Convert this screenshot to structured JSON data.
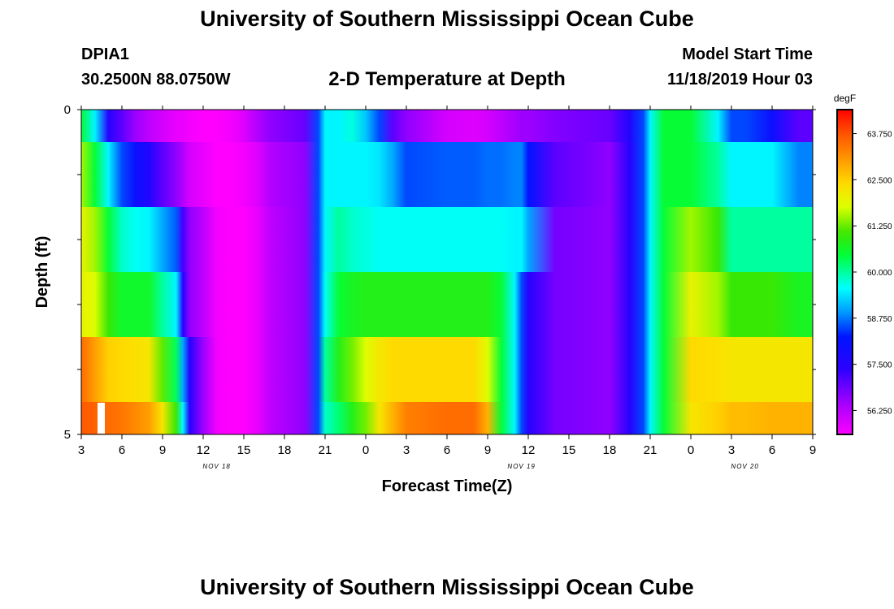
{
  "header": {
    "title_top": "University of Southern Mississippi Ocean Cube",
    "station_id": "DPIA1",
    "station_coords": "30.2500N 88.0750W",
    "chart_title": "2-D Temperature at Depth",
    "model_label": "Model Start Time",
    "model_time": "11/18/2019 Hour 03",
    "title_bottom": "University of Southern Mississippi Ocean Cube"
  },
  "chart_data": {
    "type": "heatmap",
    "title": "2-D Temperature at Depth",
    "xlabel": "Forecast Time(Z)",
    "ylabel": "Depth (ft)",
    "x_start_hour": 3,
    "x_end_hour": 57,
    "x_tick_labels": [
      "3",
      "6",
      "9",
      "12",
      "15",
      "18",
      "21",
      "0",
      "3",
      "6",
      "9",
      "12",
      "15",
      "18",
      "21",
      "0",
      "3",
      "6",
      "9"
    ],
    "date_labels": [
      {
        "label": "NOV 18",
        "hour": 13
      },
      {
        "label": "NOV 19",
        "hour": 35.5
      },
      {
        "label": "NOV 20",
        "hour": 52
      }
    ],
    "y_tick_labels": [
      "0",
      "5"
    ],
    "depth_range_ft": [
      0,
      5
    ],
    "colorbar": {
      "unit": "degF",
      "range": [
        55.6,
        64.4
      ],
      "tick_values": [
        63.75,
        62.5,
        61.25,
        60.0,
        58.75,
        57.5,
        56.25
      ],
      "tick_labels": [
        "63.750",
        "62.500",
        "61.250",
        "60.000",
        "58.750",
        "57.500",
        "56.250"
      ]
    },
    "depth_layers_ft": [
      {
        "top": 0.0,
        "bottom": 0.5
      },
      {
        "top": 0.5,
        "bottom": 1.5
      },
      {
        "top": 1.5,
        "bottom": 2.5
      },
      {
        "top": 2.5,
        "bottom": 3.5
      },
      {
        "top": 3.5,
        "bottom": 4.5
      },
      {
        "top": 4.5,
        "bottom": 5.0
      }
    ],
    "keyframe_hours": [
      3,
      4,
      5,
      6,
      7,
      8,
      9,
      10,
      10.5,
      11,
      12,
      13,
      14,
      15,
      16,
      17,
      19.5,
      20.5,
      21,
      22,
      23,
      24,
      25,
      26,
      27,
      30,
      32,
      33,
      34,
      35,
      35.5,
      36,
      38,
      42,
      43.5,
      44.5,
      45,
      46,
      48,
      50,
      51,
      52,
      54,
      56,
      57
    ],
    "temperature_degF": [
      [
        60.5,
        59.5,
        57.5,
        57.0,
        56.5,
        56.2,
        56.0,
        55.8,
        55.8,
        55.7,
        55.6,
        55.6,
        55.7,
        55.9,
        56.3,
        56.6,
        56.9,
        58.5,
        59.5,
        59.5,
        59.7,
        59.2,
        58.5,
        57.0,
        56.6,
        56.0,
        55.9,
        56.0,
        56.2,
        56.4,
        56.5,
        56.5,
        56.7,
        56.9,
        57.6,
        58.5,
        59.5,
        60.5,
        60.5,
        59.5,
        58.5,
        58.5,
        58.0,
        57.0,
        57.0
      ],
      [
        61.5,
        60.5,
        59.5,
        58.5,
        58.0,
        57.6,
        57.0,
        56.6,
        56.3,
        56.0,
        55.8,
        55.6,
        55.6,
        55.7,
        55.9,
        56.3,
        56.6,
        58.5,
        59.5,
        59.5,
        59.5,
        59.5,
        59.4,
        59.0,
        58.5,
        58.6,
        58.6,
        58.7,
        58.7,
        58.8,
        58.8,
        58.2,
        57.0,
        56.6,
        57.5,
        58.5,
        59.5,
        60.5,
        60.5,
        60.0,
        59.5,
        59.5,
        59.5,
        58.8,
        58.8
      ],
      [
        62.0,
        61.5,
        60.5,
        59.8,
        59.6,
        59.5,
        59.0,
        58.6,
        57.2,
        56.6,
        56.2,
        55.7,
        55.6,
        55.6,
        55.8,
        56.2,
        56.6,
        58.5,
        59.5,
        60.0,
        59.8,
        59.7,
        59.6,
        59.6,
        59.6,
        59.6,
        59.6,
        59.6,
        59.6,
        59.5,
        59.5,
        59.0,
        56.8,
        56.6,
        57.5,
        58.5,
        59.5,
        60.5,
        61.5,
        61.0,
        60.0,
        60.0,
        60.0,
        60.0,
        60.0
      ],
      [
        62.0,
        61.8,
        61.0,
        60.6,
        60.6,
        60.6,
        60.0,
        59.5,
        57.5,
        56.6,
        56.2,
        55.7,
        55.6,
        55.6,
        55.8,
        56.2,
        56.6,
        58.5,
        59.6,
        60.5,
        60.7,
        60.8,
        60.8,
        60.8,
        60.8,
        60.8,
        60.8,
        60.8,
        60.5,
        59.5,
        58.5,
        57.5,
        56.8,
        56.6,
        57.5,
        58.5,
        59.5,
        60.5,
        62.0,
        61.5,
        61.0,
        61.0,
        61.0,
        60.7,
        60.7
      ],
      [
        63.5,
        63.0,
        62.5,
        62.4,
        62.3,
        62.2,
        61.2,
        60.3,
        59.0,
        57.5,
        56.5,
        55.7,
        55.6,
        55.6,
        55.8,
        56.2,
        56.6,
        58.5,
        60.0,
        60.8,
        61.3,
        61.8,
        62.2,
        62.4,
        62.4,
        62.4,
        62.4,
        61.8,
        60.5,
        59.5,
        58.5,
        57.5,
        56.8,
        56.6,
        57.5,
        58.5,
        59.5,
        60.5,
        62.4,
        62.3,
        62.2,
        62.2,
        62.2,
        62.2,
        62.2
      ],
      [
        63.7,
        63.6,
        63.5,
        63.4,
        63.2,
        63.0,
        62.2,
        61.0,
        59.5,
        57.5,
        56.5,
        55.7,
        55.6,
        55.6,
        55.8,
        56.2,
        56.6,
        58.5,
        59.8,
        60.2,
        60.8,
        61.3,
        62.2,
        62.8,
        63.3,
        63.5,
        63.5,
        62.8,
        60.5,
        59.5,
        58.5,
        57.5,
        56.8,
        56.6,
        57.5,
        58.5,
        59.5,
        60.5,
        62.2,
        62.5,
        62.7,
        62.7,
        62.8,
        62.8,
        62.8
      ]
    ]
  }
}
